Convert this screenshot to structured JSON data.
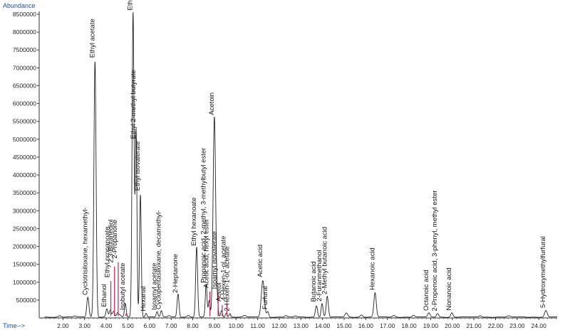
{
  "chart_data": {
    "type": "line",
    "ylabel": "Abundance",
    "xlabel": "Time-->",
    "xlim": [
      0.9,
      24.85
    ],
    "ylim": [
      0,
      8500000
    ],
    "x_ticks": [
      "2.00",
      "3.00",
      "4.00",
      "5.00",
      "6.00",
      "7.00",
      "8.00",
      "9.00",
      "10.00",
      "11.00",
      "12.00",
      "13.00",
      "14.00",
      "15.00",
      "16.00",
      "17.00",
      "18.00",
      "19.00",
      "20.00",
      "21.00",
      "22.00",
      "23.00",
      "24.00"
    ],
    "y_ticks": [
      "500000",
      "1000000",
      "1500000",
      "2000000",
      "2500000",
      "3000000",
      "3500000",
      "4000000",
      "4500000",
      "5000000",
      "5500000",
      "6000000",
      "6500000",
      "7000000",
      "7500000",
      "8000000",
      "8500000"
    ],
    "colors": {
      "trace": "#222222",
      "axis": "#333333",
      "axis_title": "#1f4e9e",
      "callout": "#cc1e5a"
    },
    "peaks": [
      {
        "label": "Cyclotrisiloxane, hexamethyl-",
        "rt": 3.15,
        "abundance": 560000,
        "width": 0.05,
        "callout": false,
        "ly": 580000
      },
      {
        "label": "Ethyl acetate",
        "rt": 3.48,
        "abundance": 7150000,
        "width": 0.05,
        "callout": false,
        "ly": 7220000
      },
      {
        "label": "Ethanol",
        "rt": 4.03,
        "abundance": 230000,
        "width": 0.045,
        "callout": false,
        "ly": 250000
      },
      {
        "label": "Ethyl propanoate",
        "rt": 4.18,
        "abundance": 180000,
        "width": 0.04,
        "callout": true,
        "ly": 1070000
      },
      {
        "label": "2,3-Butanediol",
        "rt": 4.35,
        "abundance": 120000,
        "width": 0.04,
        "callout": true,
        "ly": 1480000
      },
      {
        "label": "2-Propanone",
        "rt": 4.52,
        "abundance": 100000,
        "width": 0.04,
        "callout": true,
        "ly": 1600000
      },
      {
        "label": "Isobutyl acetate",
        "rt": 4.88,
        "abundance": 380000,
        "width": 0.04,
        "callout": true,
        "ly": 160000
      },
      {
        "label": "Ethyl butyrate",
        "rt": 5.24,
        "abundance": 8520000,
        "width": 0.045,
        "callout": false,
        "ly": 8550000
      },
      {
        "label": "Ethyl 2-methyl butyrate",
        "rt": 5.38,
        "abundance": 5200000,
        "width": 0.04,
        "callout": false,
        "ly": 4950000
      },
      {
        "label": "Ethyl isovalerate",
        "rt": 5.58,
        "abundance": 3420000,
        "width": 0.04,
        "callout": false,
        "ly": 3500000
      },
      {
        "label": "Hexanal",
        "rt": 5.84,
        "abundance": 110000,
        "width": 0.04,
        "callout": false,
        "ly": 130000
      },
      {
        "label": "Isoamyl acetate",
        "rt": 6.35,
        "abundance": 150000,
        "width": 0.04,
        "callout": false,
        "ly": 160000
      },
      {
        "label": "Cyclopentasiloxane, decamethyl-",
        "rt": 6.55,
        "abundance": 170000,
        "width": 0.04,
        "callout": false,
        "ly": 180000
      },
      {
        "label": "2-Heptanone",
        "rt": 7.32,
        "abundance": 650000,
        "width": 0.045,
        "callout": false,
        "ly": 640000
      },
      {
        "label": "Ethyl hexanoate",
        "rt": 8.18,
        "abundance": 1950000,
        "width": 0.045,
        "callout": false,
        "ly": 1960000
      },
      {
        "label": "Propanoic acid, 2-methyl, 3-methylbutyl ester",
        "rt": 8.62,
        "abundance": 900000,
        "width": 0.04,
        "callout": false,
        "ly": 920000
      },
      {
        "label": "Acetic acid, hexyl ester",
        "rt": 8.76,
        "abundance": 450000,
        "width": 0.04,
        "callout": true,
        "ly": 780000
      },
      {
        "label": "Acetoin",
        "rt": 9.0,
        "abundance": 5600000,
        "width": 0.06,
        "callout": false,
        "ly": 5620000
      },
      {
        "label": "Isoamyl isovalerate",
        "rt": 9.14,
        "abundance": 300000,
        "width": 0.04,
        "callout": true,
        "ly": 750000
      },
      {
        "label": "Acetol",
        "rt": 9.33,
        "abundance": 180000,
        "width": 0.04,
        "callout": true,
        "ly": 400000
      },
      {
        "label": "4-Hexen-1-ol, acetate",
        "rt": 9.55,
        "abundance": 120000,
        "width": 0.04,
        "callout": true,
        "ly": 420000
      },
      {
        "label": "2-Hexen-1-ol, acetate",
        "rt": 9.72,
        "abundance": 100000,
        "width": 0.04,
        "callout": true,
        "ly": 130000
      },
      {
        "label": "Acetic acid",
        "rt": 11.24,
        "abundance": 1020000,
        "width": 0.07,
        "callout": false,
        "ly": 1080000
      },
      {
        "label": "Furfural",
        "rt": 11.47,
        "abundance": 150000,
        "width": 0.045,
        "callout": false,
        "ly": 180000
      },
      {
        "label": "Butanoic acid",
        "rt": 13.72,
        "abundance": 320000,
        "width": 0.05,
        "callout": false,
        "ly": 390000
      },
      {
        "label": "2-Furanmethanol",
        "rt": 13.98,
        "abundance": 380000,
        "width": 0.045,
        "callout": false,
        "ly": 400000
      },
      {
        "label": "2-Methyl butanoic acid",
        "rt": 14.22,
        "abundance": 580000,
        "width": 0.05,
        "callout": false,
        "ly": 600000
      },
      {
        "label": "Hexanoic acid",
        "rt": 16.43,
        "abundance": 680000,
        "width": 0.055,
        "callout": false,
        "ly": 720000
      },
      {
        "label": "Octanoic acid",
        "rt": 18.92,
        "abundance": 110000,
        "width": 0.05,
        "callout": false,
        "ly": 140000
      },
      {
        "label": "2-Propenoic acid, 3-phenyl, methyl ester",
        "rt": 19.32,
        "abundance": 100000,
        "width": 0.05,
        "callout": false,
        "ly": 130000
      },
      {
        "label": "Nonanoic acid",
        "rt": 19.98,
        "abundance": 120000,
        "width": 0.05,
        "callout": false,
        "ly": 150000
      },
      {
        "label": "5-Hydroxymethylfurfural",
        "rt": 24.33,
        "abundance": 180000,
        "width": 0.06,
        "callout": false,
        "ly": 220000
      }
    ],
    "minor_peaks": [
      {
        "rt": 1.85,
        "abundance": 40000
      },
      {
        "rt": 2.55,
        "abundance": 30000
      },
      {
        "rt": 4.28,
        "abundance": 60000
      },
      {
        "rt": 4.62,
        "abundance": 60000
      },
      {
        "rt": 6.9,
        "abundance": 40000
      },
      {
        "rt": 7.8,
        "abundance": 50000
      },
      {
        "rt": 10.4,
        "abundance": 40000
      },
      {
        "rt": 12.3,
        "abundance": 40000
      },
      {
        "rt": 12.75,
        "abundance": 30000
      },
      {
        "rt": 15.1,
        "abundance": 110000
      },
      {
        "rt": 15.8,
        "abundance": 60000
      },
      {
        "rt": 17.3,
        "abundance": 40000
      },
      {
        "rt": 18.2,
        "abundance": 50000
      },
      {
        "rt": 21.3,
        "abundance": 40000
      },
      {
        "rt": 22.6,
        "abundance": 30000
      }
    ]
  }
}
